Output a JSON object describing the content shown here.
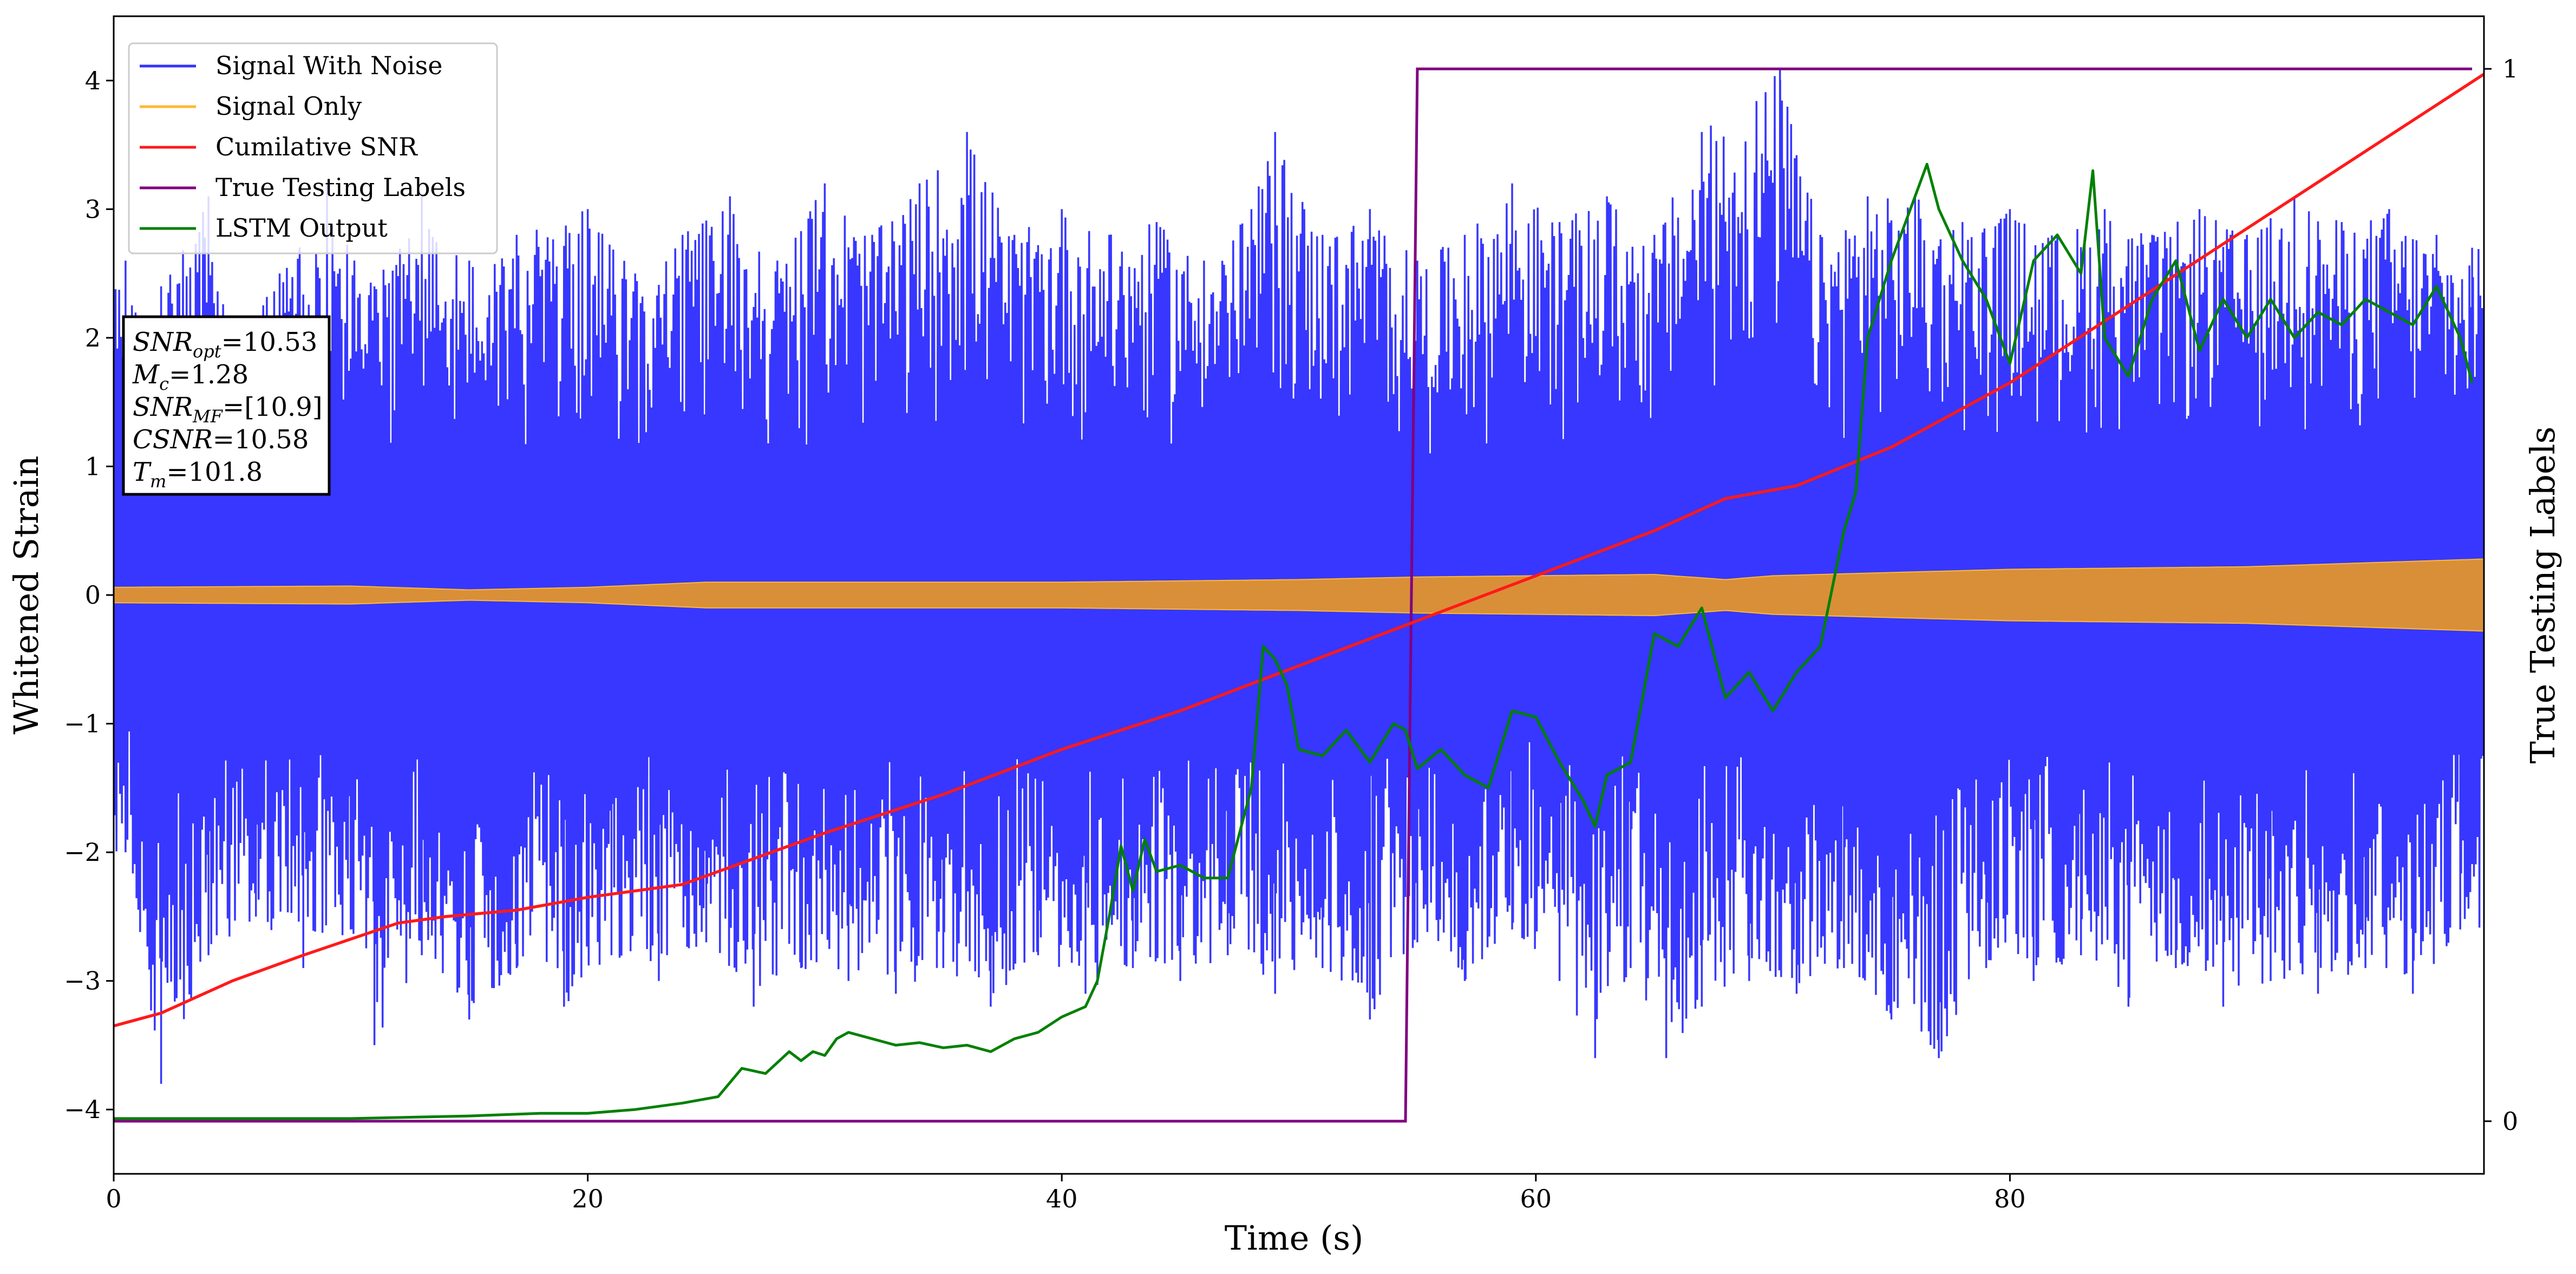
{
  "chart_data": {
    "type": "line",
    "xlabel": "Time (s)",
    "ylabel": "Whitened Strain",
    "y2label": "True Testing Labels",
    "xlim": [
      0,
      100
    ],
    "ylim": [
      -4.5,
      4.5
    ],
    "y2lim": [
      -0.05,
      1.05
    ],
    "xticks": [
      "0",
      "20",
      "40",
      "60",
      "80"
    ],
    "yticks": [
      "−4",
      "−3",
      "−2",
      "−1",
      "0",
      "1",
      "2",
      "3",
      "4"
    ],
    "y2ticks": [
      "0",
      "1"
    ],
    "legend": {
      "position": "top-left",
      "entries": [
        {
          "label": "Signal With Noise",
          "color": "#3333ff"
        },
        {
          "label": "Signal Only",
          "color": "#ffb833"
        },
        {
          "label": "Cumilative SNR",
          "color": "#ff1a1a"
        },
        {
          "label": "True Testing Labels",
          "color": "#800080"
        },
        {
          "label": "LSTM Output",
          "color": "#008000"
        }
      ]
    },
    "annotation": {
      "lines": [
        {
          "main": "SNR",
          "sub": "opt",
          "rest": "=10.53"
        },
        {
          "main": "M",
          "sub": "c",
          "rest": "=1.28"
        },
        {
          "main": "SNR",
          "sub": "MF",
          "rest": "=[10.9]"
        },
        {
          "main": "CSNR",
          "sub": "",
          "rest": "=10.58"
        },
        {
          "main": "T",
          "sub": "m",
          "rest": "=101.8"
        }
      ]
    },
    "series": [
      {
        "name": "Signal With Noise",
        "color": "#3333ff",
        "description_free": true,
        "upper_peaks": [
          [
            0.5,
            2.6
          ],
          [
            2,
            2.4
          ],
          [
            4,
            3.1
          ],
          [
            5,
            2.0
          ],
          [
            7,
            2.5
          ],
          [
            9,
            3.2
          ],
          [
            11,
            2.4
          ],
          [
            13,
            3.1
          ],
          [
            15,
            2.6
          ],
          [
            17,
            2.8
          ],
          [
            20,
            3.0
          ],
          [
            22,
            2.5
          ],
          [
            24,
            2.8
          ],
          [
            26,
            3.1
          ],
          [
            28,
            2.6
          ],
          [
            30,
            3.2
          ],
          [
            32,
            2.8
          ],
          [
            34,
            3.2
          ],
          [
            36,
            3.6
          ],
          [
            38,
            2.8
          ],
          [
            40,
            3.0
          ],
          [
            42,
            2.8
          ],
          [
            44,
            2.9
          ],
          [
            46,
            2.6
          ],
          [
            48,
            3.0
          ],
          [
            49,
            3.6
          ],
          [
            51,
            2.8
          ],
          [
            53,
            3.0
          ],
          [
            55,
            2.6
          ],
          [
            57,
            2.8
          ],
          [
            59,
            3.2
          ],
          [
            61,
            2.9
          ],
          [
            63,
            3.1
          ],
          [
            65,
            2.8
          ],
          [
            67,
            3.6
          ],
          [
            70.3,
            4.1
          ],
          [
            72,
            2.8
          ],
          [
            74,
            3.1
          ],
          [
            76,
            3.1
          ],
          [
            78,
            2.9
          ],
          [
            80,
            3.0
          ],
          [
            82,
            2.8
          ],
          [
            84,
            3.0
          ],
          [
            86,
            2.8
          ],
          [
            88,
            3.0
          ],
          [
            90,
            2.8
          ],
          [
            92,
            3.1
          ],
          [
            94,
            2.9
          ],
          [
            96,
            3.0
          ],
          [
            98,
            2.8
          ],
          [
            99.5,
            2.7
          ]
        ],
        "lower_peaks": [
          [
            0.5,
            -2.0
          ],
          [
            2,
            -3.8
          ],
          [
            4,
            -2.8
          ],
          [
            6,
            -2.5
          ],
          [
            8,
            -2.9
          ],
          [
            10,
            -2.6
          ],
          [
            11,
            -3.5
          ],
          [
            13,
            -2.8
          ],
          [
            15,
            -3.3
          ],
          [
            17,
            -2.9
          ],
          [
            19,
            -3.2
          ],
          [
            21,
            -2.8
          ],
          [
            23,
            -3.0
          ],
          [
            25,
            -2.7
          ],
          [
            27,
            -3.2
          ],
          [
            29,
            -2.9
          ],
          [
            31,
            -3.0
          ],
          [
            33,
            -3.1
          ],
          [
            35,
            -2.9
          ],
          [
            37,
            -3.2
          ],
          [
            39,
            -2.8
          ],
          [
            41,
            -3.1
          ],
          [
            43,
            -2.9
          ],
          [
            45,
            -3.0
          ],
          [
            47,
            -2.8
          ],
          [
            49,
            -3.1
          ],
          [
            51,
            -2.9
          ],
          [
            53,
            -3.3
          ],
          [
            55,
            -2.7
          ],
          [
            57,
            -3.0
          ],
          [
            59,
            -2.6
          ],
          [
            61,
            -3.0
          ],
          [
            62.5,
            -3.6
          ],
          [
            64,
            -2.9
          ],
          [
            65.5,
            -3.6
          ],
          [
            67,
            -3.2
          ],
          [
            69,
            -3.0
          ],
          [
            71,
            -3.1
          ],
          [
            73,
            -2.9
          ],
          [
            75,
            -3.3
          ],
          [
            77,
            -3.6
          ],
          [
            79,
            -2.9
          ],
          [
            81,
            -3.0
          ],
          [
            83,
            -2.8
          ],
          [
            85,
            -3.2
          ],
          [
            87,
            -2.9
          ],
          [
            89,
            -3.2
          ],
          [
            91,
            -3.0
          ],
          [
            93,
            -3.1
          ],
          [
            95,
            -2.9
          ],
          [
            97,
            -3.1
          ],
          [
            99,
            -2.6
          ]
        ]
      },
      {
        "name": "Signal Only",
        "color": "#ffb833",
        "envelope": [
          [
            0,
            0.06
          ],
          [
            10,
            0.07
          ],
          [
            15,
            0.04
          ],
          [
            20,
            0.06
          ],
          [
            25,
            0.1
          ],
          [
            40,
            0.1
          ],
          [
            50,
            0.12
          ],
          [
            55,
            0.14
          ],
          [
            65,
            0.16
          ],
          [
            68,
            0.12
          ],
          [
            70,
            0.15
          ],
          [
            80,
            0.2
          ],
          [
            90,
            0.22
          ],
          [
            100,
            0.28
          ]
        ]
      },
      {
        "name": "Cumilative SNR",
        "color": "#ff1a1a",
        "x": [
          0,
          2,
          5,
          8,
          12,
          14,
          17,
          20,
          24,
          27,
          30,
          35,
          40,
          45,
          50,
          55,
          60,
          65,
          68,
          71,
          75,
          80,
          85,
          90,
          95,
          100
        ],
        "y": [
          -3.35,
          -3.25,
          -3.0,
          -2.8,
          -2.55,
          -2.5,
          -2.45,
          -2.35,
          -2.25,
          -2.05,
          -1.85,
          -1.55,
          -1.2,
          -0.9,
          -0.55,
          -0.2,
          0.15,
          0.5,
          0.75,
          0.85,
          1.15,
          1.65,
          2.25,
          2.85,
          3.45,
          4.05
        ]
      },
      {
        "name": "True Testing Labels",
        "color": "#800080",
        "axis": "right",
        "x": [
          0,
          54.5,
          55,
          99.5
        ],
        "y": [
          0,
          0,
          1,
          1
        ]
      },
      {
        "name": "LSTM Output",
        "color": "#008000",
        "x": [
          0,
          10,
          15,
          18,
          20,
          22,
          24,
          25.5,
          26.5,
          27.5,
          28.5,
          29,
          29.5,
          30,
          30.5,
          31,
          32,
          33,
          34,
          35,
          36,
          37,
          38,
          39,
          40,
          41,
          41.5,
          42,
          42.5,
          43,
          43.5,
          44,
          45,
          46,
          47,
          48,
          48.5,
          49,
          49.5,
          50,
          51,
          52,
          53,
          54,
          54.5,
          55,
          56,
          57,
          58,
          59,
          60,
          61,
          62,
          62.5,
          63,
          64,
          65,
          66,
          67,
          68,
          69,
          70,
          71,
          72,
          73,
          73.5,
          74,
          75,
          76,
          76.5,
          77,
          78,
          79,
          80,
          81,
          82,
          83,
          83.5,
          84,
          85,
          86,
          87,
          88,
          89,
          90,
          91,
          92,
          93,
          94,
          95,
          96,
          97,
          98,
          99,
          99.5
        ],
        "y": [
          -4.07,
          -4.07,
          -4.05,
          -4.03,
          -4.03,
          -4.0,
          -3.95,
          -3.9,
          -3.68,
          -3.72,
          -3.55,
          -3.62,
          -3.55,
          -3.58,
          -3.45,
          -3.4,
          -3.45,
          -3.5,
          -3.48,
          -3.52,
          -3.5,
          -3.55,
          -3.45,
          -3.4,
          -3.28,
          -3.2,
          -3.0,
          -2.5,
          -1.95,
          -2.3,
          -1.9,
          -2.15,
          -2.1,
          -2.2,
          -2.2,
          -1.5,
          -0.4,
          -0.5,
          -0.7,
          -1.2,
          -1.25,
          -1.05,
          -1.3,
          -1.0,
          -1.05,
          -1.35,
          -1.2,
          -1.4,
          -1.5,
          -0.9,
          -0.95,
          -1.3,
          -1.6,
          -1.8,
          -1.4,
          -1.3,
          -0.3,
          -0.4,
          -0.1,
          -0.8,
          -0.6,
          -0.9,
          -0.6,
          -0.4,
          0.5,
          0.8,
          2.0,
          2.6,
          3.1,
          3.35,
          3.0,
          2.6,
          2.3,
          1.8,
          2.6,
          2.8,
          2.5,
          3.3,
          2.0,
          1.7,
          2.3,
          2.6,
          1.9,
          2.3,
          2.0,
          2.3,
          2.0,
          2.2,
          2.1,
          2.3,
          2.2,
          2.1,
          2.4,
          2.0,
          1.65
        ]
      }
    ]
  }
}
